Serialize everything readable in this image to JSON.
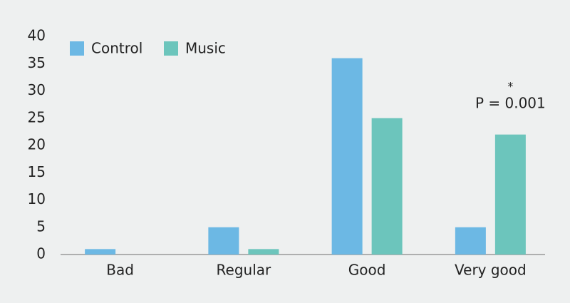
{
  "chart_data": {
    "type": "bar",
    "categories": [
      "Bad",
      "Regular",
      "Good",
      "Very good"
    ],
    "series": [
      {
        "name": "Control",
        "color": "#6cb8e4",
        "values": [
          1,
          5,
          36,
          5
        ]
      },
      {
        "name": "Music",
        "color": "#6cc5bc",
        "values": [
          0,
          1,
          25,
          22
        ]
      }
    ],
    "ylim": [
      0,
      40
    ],
    "yticks": [
      0,
      5,
      10,
      15,
      20,
      25,
      30,
      35,
      40
    ],
    "legend": "top-left",
    "annotations": [
      {
        "text": "*"
      },
      {
        "text": "P = 0.001"
      }
    ]
  }
}
